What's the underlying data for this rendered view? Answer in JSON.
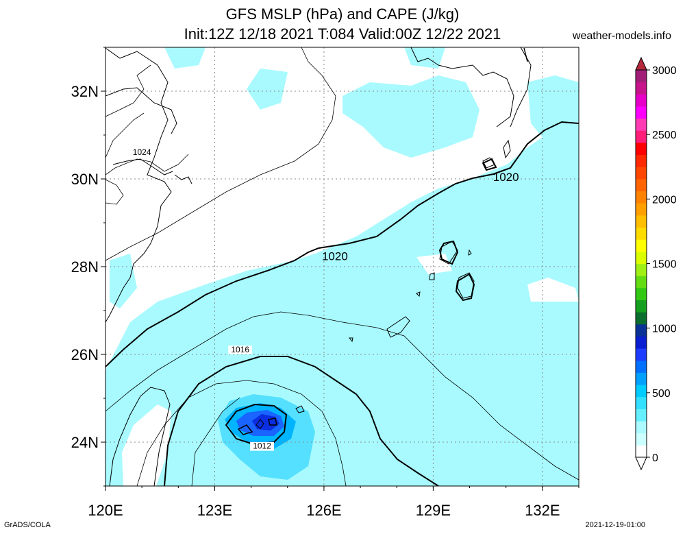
{
  "header": {
    "title": "GFS MSLP (hPa) and CAPE (J/kg)",
    "subtitle": "Init:12Z 12/18 2021 T:084 Valid:00Z 12/22 2021",
    "site": "weather-models.info"
  },
  "footer": {
    "left": "GrADS/COLA",
    "right": "2021-12-19-01:00"
  },
  "map": {
    "lon_range": [
      120,
      133
    ],
    "lat_range": [
      23,
      33
    ],
    "lon_ticks": [
      {
        "value": 120,
        "label": "120E"
      },
      {
        "value": 123,
        "label": "123E"
      },
      {
        "value": 126,
        "label": "126E"
      },
      {
        "value": 129,
        "label": "129E"
      },
      {
        "value": 132,
        "label": "132E"
      }
    ],
    "lat_ticks": [
      {
        "value": 24,
        "label": "24N"
      },
      {
        "value": 26,
        "label": "26N"
      },
      {
        "value": 28,
        "label": "28N"
      },
      {
        "value": 30,
        "label": "30N"
      },
      {
        "value": 32,
        "label": "32N"
      }
    ],
    "grid": true,
    "isobar_labels": [
      {
        "text": "1024",
        "lon": 121.0,
        "lat": 30.55
      },
      {
        "text": "1020",
        "lon": 126.3,
        "lat": 28.15
      },
      {
        "text": "1020",
        "lon": 131.0,
        "lat": 29.95
      },
      {
        "text": "1016",
        "lon": 123.7,
        "lat": 26.05
      },
      {
        "text": "1012",
        "lon": 124.3,
        "lat": 23.85
      }
    ],
    "cape_fill_color": "#a8fafe",
    "cape_core_colors": [
      "#55e0ff",
      "#00b4ff",
      "#1a64ff",
      "#0a2ee0"
    ]
  },
  "colorbar": {
    "ticks": [
      "0",
      "500",
      "1000",
      "1500",
      "2000",
      "2500",
      "3000"
    ],
    "range": [
      0,
      3000
    ],
    "colors": [
      "#ffffff",
      "#ccffff",
      "#aafaff",
      "#66f0ff",
      "#33e0ff",
      "#00ccff",
      "#00a0ff",
      "#0070ff",
      "#1e3cff",
      "#0a1ed2",
      "#0a3296",
      "#0a6e2d",
      "#14a01e",
      "#32c814",
      "#64dc14",
      "#a0f014",
      "#dcff00",
      "#ffff00",
      "#ffdc00",
      "#ffbe00",
      "#ffa000",
      "#ff8200",
      "#ff6400",
      "#ff4600",
      "#ff2800",
      "#ff0000",
      "#ff1e78",
      "#ff3cb4",
      "#ff00ff",
      "#e600c8",
      "#c8148c",
      "#a01e78"
    ]
  }
}
